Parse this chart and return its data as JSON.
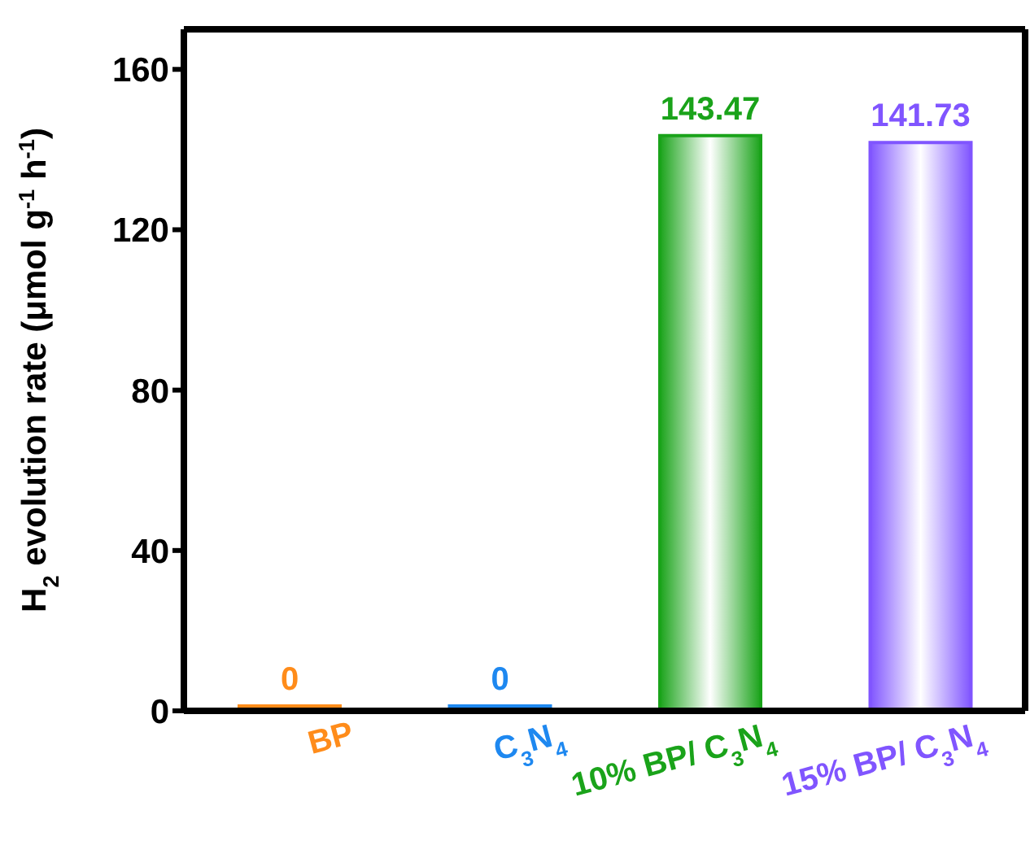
{
  "chart_data": {
    "type": "bar",
    "ylabel": "H$_{2}$ evolution rate (μmol g$^{-1}$ h$^{-1}$)",
    "categories": [
      "BP",
      "C$_{3}$N$_{4}$",
      "10% BP/ C$_{3}$N$_{4}$",
      "15% BP/ C$_{3}$N$_{4}$"
    ],
    "values": [
      0,
      0,
      143.47,
      141.73
    ],
    "colors": [
      "#ff8c1a",
      "#1e88f0",
      "#1aa31a",
      "#8055ff"
    ],
    "data_labels": true,
    "ylim": [
      0,
      170
    ],
    "yticks": [
      0,
      40,
      80,
      120,
      160
    ],
    "grid": false
  }
}
